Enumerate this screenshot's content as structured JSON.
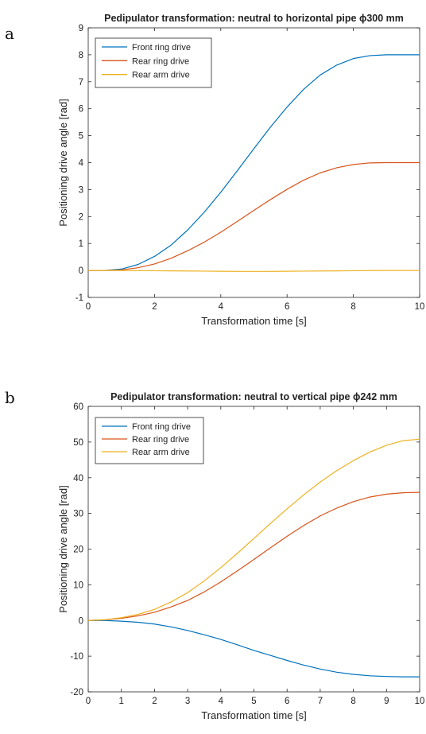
{
  "panel_labels": [
    "a",
    "b"
  ],
  "chart_data": [
    {
      "type": "line",
      "title": "Pedipulator transformation: neutral to horizontal pipe ϕ300 mm",
      "xlabel": "Transformation time [s]",
      "ylabel": "Positioning drive angle [rad]",
      "xlim": [
        0,
        10
      ],
      "ylim": [
        -1,
        9
      ],
      "xticks": [
        0,
        2,
        4,
        6,
        8,
        10
      ],
      "yticks": [
        -1,
        0,
        1,
        2,
        3,
        4,
        5,
        6,
        7,
        8,
        9
      ],
      "grid": false,
      "legend_position": "top-left",
      "x": [
        0,
        0.5,
        1,
        1.5,
        2,
        2.5,
        3,
        3.5,
        4,
        4.5,
        5,
        5.5,
        6,
        6.5,
        7,
        7.5,
        8,
        8.5,
        9,
        9.5,
        10
      ],
      "series": [
        {
          "name": "Front ring drive",
          "color": "#0072BD",
          "values": [
            0,
            0,
            0.05,
            0.22,
            0.52,
            0.94,
            1.5,
            2.16,
            2.9,
            3.7,
            4.52,
            5.32,
            6.06,
            6.72,
            7.25,
            7.62,
            7.86,
            7.97,
            8.0,
            8.0,
            8.0
          ]
        },
        {
          "name": "Rear ring drive",
          "color": "#D95319",
          "values": [
            0,
            0,
            0.02,
            0.1,
            0.24,
            0.45,
            0.73,
            1.05,
            1.42,
            1.82,
            2.23,
            2.63,
            3.01,
            3.35,
            3.62,
            3.81,
            3.93,
            3.99,
            4.0,
            4.0,
            4.0
          ]
        },
        {
          "name": "Rear arm drive",
          "color": "#EDB120",
          "values": [
            0,
            0,
            0,
            -0.005,
            -0.01,
            -0.015,
            -0.02,
            -0.025,
            -0.03,
            -0.035,
            -0.035,
            -0.035,
            -0.03,
            -0.025,
            -0.02,
            -0.015,
            -0.01,
            -0.005,
            0,
            0,
            0
          ]
        }
      ]
    },
    {
      "type": "line",
      "title": "Pedipulator transformation: neutral to vertical pipe ϕ242 mm",
      "xlabel": "Transformation time [s]",
      "ylabel": "Positioning drive angle [rad]",
      "xlim": [
        0,
        10
      ],
      "ylim": [
        -20,
        60
      ],
      "xticks": [
        0,
        1,
        2,
        3,
        4,
        5,
        6,
        7,
        8,
        9,
        10
      ],
      "yticks": [
        -20,
        -10,
        0,
        10,
        20,
        30,
        40,
        50,
        60
      ],
      "grid": false,
      "legend_position": "top-left",
      "x": [
        0,
        0.5,
        1,
        1.5,
        2,
        2.5,
        3,
        3.5,
        4,
        4.5,
        5,
        5.5,
        6,
        6.5,
        7,
        7.5,
        8,
        8.5,
        9,
        9.5,
        10
      ],
      "series": [
        {
          "name": "Front ring drive",
          "color": "#0072BD",
          "values": [
            0,
            0,
            -0.2,
            -0.5,
            -1.0,
            -1.8,
            -2.8,
            -4.0,
            -5.3,
            -6.8,
            -8.4,
            -9.8,
            -11.2,
            -12.5,
            -13.6,
            -14.5,
            -15.1,
            -15.5,
            -15.7,
            -15.8,
            -15.8
          ]
        },
        {
          "name": "Rear ring drive",
          "color": "#D95319",
          "values": [
            0,
            0.2,
            0.6,
            1.3,
            2.3,
            3.8,
            5.6,
            8.0,
            10.8,
            13.9,
            17.1,
            20.4,
            23.6,
            26.6,
            29.3,
            31.5,
            33.3,
            34.6,
            35.4,
            35.8,
            35.9
          ]
        },
        {
          "name": "Rear arm drive",
          "color": "#EDB120",
          "values": [
            0,
            0.2,
            0.8,
            1.7,
            3.1,
            5.2,
            7.8,
            11.1,
            14.8,
            18.8,
            23.0,
            27.2,
            31.3,
            35.2,
            38.8,
            42.0,
            44.8,
            47.2,
            49.1,
            50.4,
            50.8
          ]
        }
      ]
    }
  ]
}
